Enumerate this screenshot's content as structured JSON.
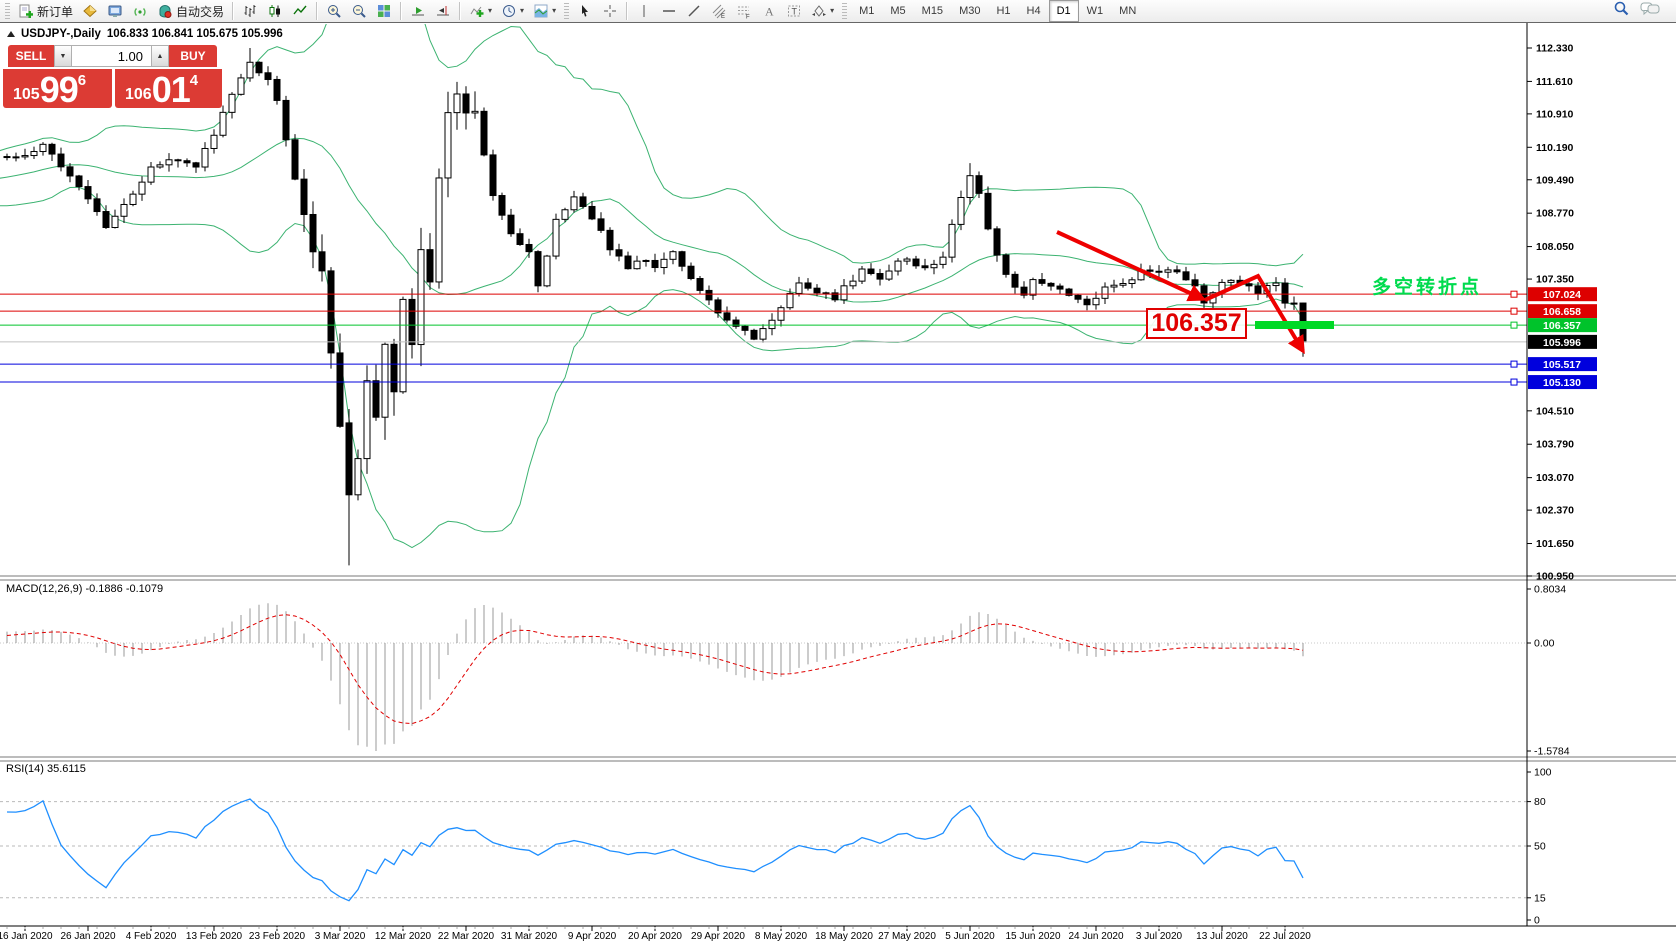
{
  "toolbar": {
    "new_order": "新订单",
    "auto_trading": "自动交易",
    "timeframes": [
      "M1",
      "M5",
      "M15",
      "M30",
      "H1",
      "H4",
      "D1",
      "W1",
      "MN"
    ],
    "active_timeframe": "D1"
  },
  "header": {
    "symbol": "USDJPY-,Daily",
    "ohlc": "106.833 106.841 105.675 105.996"
  },
  "trade_panel": {
    "sell_label": "SELL",
    "buy_label": "BUY",
    "volume": "1.00",
    "sell_price": {
      "prefix": "105",
      "big": "99",
      "pip": "6"
    },
    "buy_price": {
      "prefix": "106",
      "big": "01",
      "pip": "4"
    }
  },
  "main_chart": {
    "y_ticks": [
      "112.330",
      "111.610",
      "110.910",
      "110.190",
      "109.490",
      "108.770",
      "108.050",
      "107.350",
      "104.510",
      "103.790",
      "103.070",
      "102.370",
      "101.650",
      "100.950"
    ],
    "price_lines": [
      {
        "value": 107.024,
        "label": "107.024",
        "color": "#dd0000",
        "label_bg": "#dd0000",
        "handle": true
      },
      {
        "value": 106.658,
        "label": "106.658",
        "color": "#dd0000",
        "label_bg": "#dd0000",
        "handle": true
      },
      {
        "value": 106.357,
        "label": "106.357",
        "color": "#00c32b",
        "label_bg": "#00c32b",
        "handle": true
      },
      {
        "value": 105.996,
        "label": "105.996",
        "color": "#c0c0c0",
        "label_bg": "#000000",
        "handle": false
      },
      {
        "value": 105.517,
        "label": "105.517",
        "color": "#0000dd",
        "label_bg": "#0000dd",
        "handle": true
      },
      {
        "value": 105.13,
        "label": "105.130",
        "color": "#0000dd",
        "label_bg": "#0000dd",
        "handle": true
      }
    ],
    "annotations": {
      "price_label": "106.357",
      "note_text": "多空转折点",
      "note_color": "#00db4e",
      "arrow_color": "#ee0000",
      "bar_color": "#00d926"
    }
  },
  "macd": {
    "label": "MACD(12,26,9) -0.1886 -0.1079",
    "ticks": [
      "0.8034",
      "0.00",
      "-1.5784"
    ]
  },
  "rsi": {
    "label": "RSI(14) 35.6115",
    "ticks": [
      "100",
      "80",
      "50",
      "15",
      "0"
    ],
    "levels": [
      80,
      50,
      15
    ]
  },
  "x_axis": {
    "labels": [
      "16 Jan 2020",
      "26 Jan 2020",
      "4 Feb 2020",
      "13 Feb 2020",
      "23 Feb 2020",
      "3 Mar 2020",
      "12 Mar 2020",
      "22 Mar 2020",
      "31 Mar 2020",
      "9 Apr 2020",
      "20 Apr 2020",
      "29 Apr 2020",
      "8 May 2020",
      "18 May 2020",
      "27 May 2020",
      "5 Jun 2020",
      "15 Jun 2020",
      "24 Jun 2020",
      "3 Jul 2020",
      "13 Jul 2020",
      "22 Jul 2020"
    ]
  },
  "chart_data": {
    "type": "candlestick",
    "symbol": "USDJPY-",
    "timeframe": "Daily",
    "current_ohlc": {
      "open": 106.833,
      "high": 106.841,
      "low": 105.675,
      "close": 105.996
    },
    "bid": "105.996",
    "ask": "106.014",
    "visible_price_range": [
      100.95,
      112.33
    ],
    "indicators": {
      "bollinger": {
        "period": 20,
        "deviation": 2
      },
      "macd": {
        "fast": 12,
        "slow": 26,
        "signal": 9,
        "value": -0.1886,
        "signal_value": -0.1079,
        "range": [
          -1.5784,
          0.8034
        ]
      },
      "rsi": {
        "period": 14,
        "value": 35.6115
      }
    },
    "close_keyframes": [
      [
        -22,
        109.4
      ],
      [
        -16,
        109.1
      ],
      [
        -10,
        109.7
      ],
      [
        -5,
        109.9
      ],
      [
        0,
        110.05
      ],
      [
        2,
        110.2
      ],
      [
        5,
        109.6
      ],
      [
        7,
        109.05
      ],
      [
        9,
        108.5
      ],
      [
        11,
        108.95
      ],
      [
        14,
        109.75
      ],
      [
        17,
        109.95
      ],
      [
        19,
        109.8
      ],
      [
        21,
        110.45
      ],
      [
        23,
        111.35
      ],
      [
        25,
        112.05
      ],
      [
        27,
        111.6
      ],
      [
        28,
        111.25
      ],
      [
        29,
        110.3
      ],
      [
        31,
        108.6
      ],
      [
        33,
        107.5
      ],
      [
        34,
        105.8
      ],
      [
        35,
        104.2
      ],
      [
        36,
        102.7
      ],
      [
        37,
        103.6
      ],
      [
        38,
        105.3
      ],
      [
        39,
        104.4
      ],
      [
        40,
        105.9
      ],
      [
        41,
        105.0
      ],
      [
        42,
        106.9
      ],
      [
        43,
        106.0
      ],
      [
        44,
        107.9
      ],
      [
        45,
        107.2
      ],
      [
        46,
        109.5
      ],
      [
        47,
        110.8
      ],
      [
        48,
        111.3
      ],
      [
        49,
        110.9
      ],
      [
        50,
        111.1
      ],
      [
        51,
        110.0
      ],
      [
        52,
        109.2
      ],
      [
        54,
        108.3
      ],
      [
        56,
        107.9
      ],
      [
        57,
        107.2
      ],
      [
        59,
        108.6
      ],
      [
        61,
        109.1
      ],
      [
        63,
        108.7
      ],
      [
        65,
        108.0
      ],
      [
        67,
        107.6
      ],
      [
        69,
        107.8
      ],
      [
        70,
        107.6
      ],
      [
        72,
        107.9
      ],
      [
        74,
        107.4
      ],
      [
        76,
        106.9
      ],
      [
        77,
        106.6
      ],
      [
        79,
        106.3
      ],
      [
        81,
        106.1
      ],
      [
        83,
        106.5
      ],
      [
        84,
        106.7
      ],
      [
        86,
        107.3
      ],
      [
        88,
        107.1
      ],
      [
        90,
        106.9
      ],
      [
        91,
        107.15
      ],
      [
        93,
        107.55
      ],
      [
        95,
        107.35
      ],
      [
        97,
        107.7
      ],
      [
        98,
        107.75
      ],
      [
        100,
        107.55
      ],
      [
        102,
        107.85
      ],
      [
        104,
        109.15
      ],
      [
        105,
        109.55
      ],
      [
        106,
        109.25
      ],
      [
        107,
        108.4
      ],
      [
        109,
        107.4
      ],
      [
        111,
        106.95
      ],
      [
        112,
        107.3
      ],
      [
        114,
        107.25
      ],
      [
        116,
        106.95
      ],
      [
        118,
        106.8
      ],
      [
        120,
        107.15
      ],
      [
        122,
        107.25
      ],
      [
        124,
        107.5
      ],
      [
        126,
        107.45
      ],
      [
        128,
        107.55
      ],
      [
        130,
        107.2
      ],
      [
        131,
        106.85
      ],
      [
        133,
        107.25
      ],
      [
        135,
        107.3
      ],
      [
        137,
        107.05
      ],
      [
        139,
        107.3
      ],
      [
        140,
        106.85
      ],
      [
        141,
        106.85
      ],
      [
        142,
        105.996
      ]
    ],
    "forced_candles": {
      "36": [
        104.25,
        104.55,
        101.18,
        102.7
      ],
      "142": [
        106.833,
        106.841,
        105.675,
        105.996
      ]
    },
    "forced_highs": {
      "25": 112.33,
      "48": 111.6,
      "105": 109.85
    },
    "high_vol_range": [
      31,
      50
    ]
  }
}
